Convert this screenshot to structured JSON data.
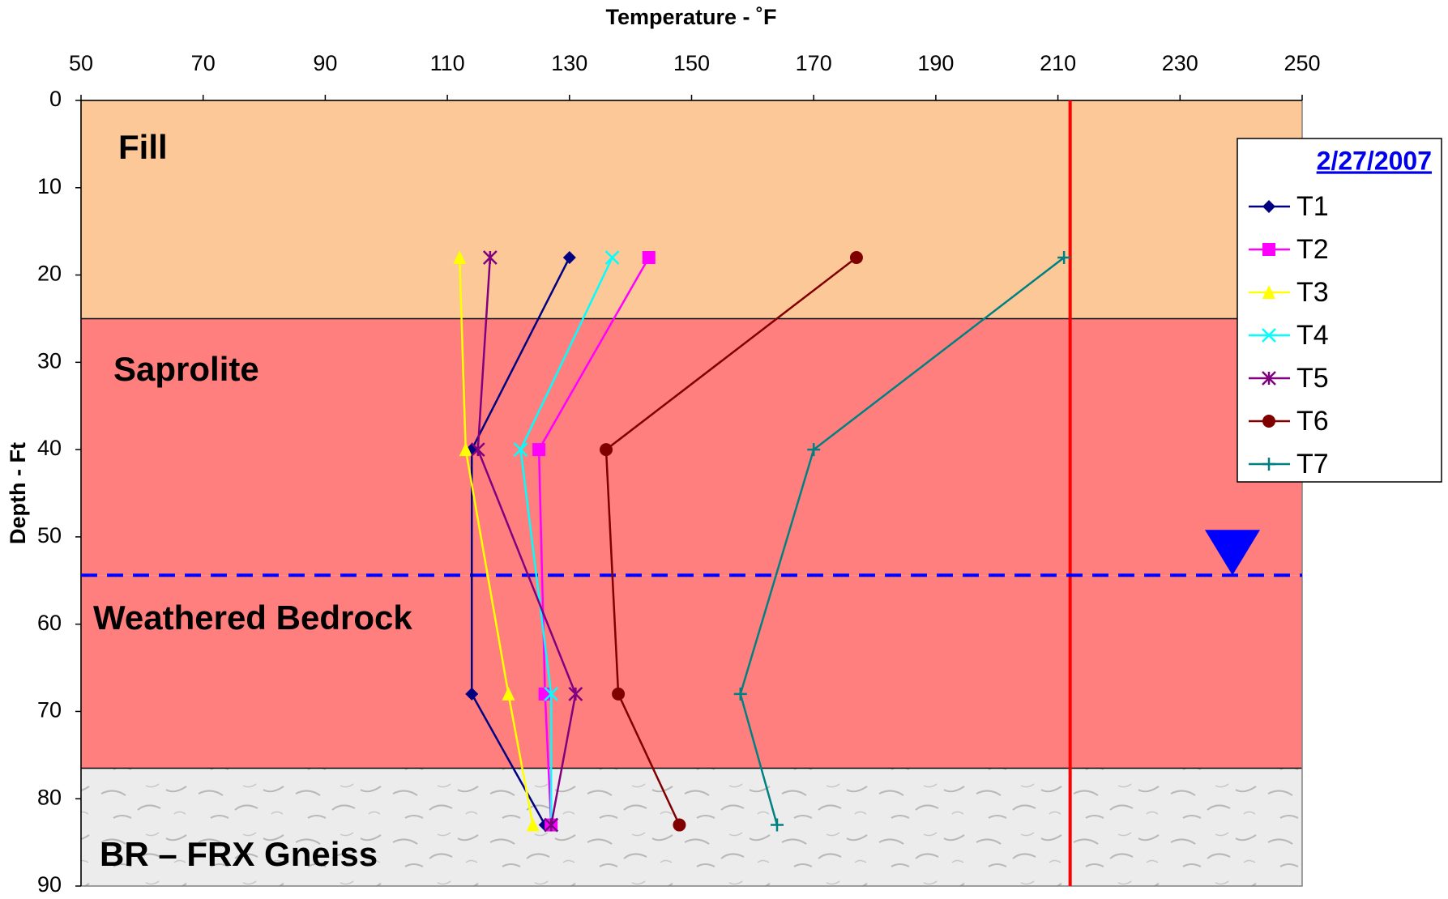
{
  "chart_data": {
    "type": "line",
    "x_label": "Temperature - ˚F",
    "y_label": "Depth - Ft",
    "xlim": [
      50,
      250
    ],
    "xticks": [
      50,
      70,
      90,
      110,
      130,
      150,
      170,
      190,
      210,
      230,
      250
    ],
    "ylim": [
      0,
      90
    ],
    "yticks": [
      0,
      10,
      20,
      30,
      40,
      50,
      60,
      70,
      80,
      90
    ],
    "y_inverted": true,
    "x_axis_position": "top",
    "legend_title": "2/27/2007",
    "legend_position": "right",
    "depths": [
      18,
      40,
      68,
      83
    ],
    "series": [
      {
        "name": "T1",
        "color": "#000080",
        "marker": "diamond",
        "values": [
          130,
          114,
          114,
          126
        ]
      },
      {
        "name": "T2",
        "color": "#ff00ff",
        "marker": "square",
        "values": [
          143,
          125,
          126,
          127
        ]
      },
      {
        "name": "T3",
        "color": "#ffff00",
        "marker": "triangle",
        "values": [
          112,
          113,
          120,
          124
        ]
      },
      {
        "name": "T4",
        "color": "#00ffff",
        "marker": "x",
        "values": [
          137,
          122,
          127,
          127
        ]
      },
      {
        "name": "T5",
        "color": "#800080",
        "marker": "star",
        "values": [
          117,
          115,
          131,
          127
        ]
      },
      {
        "name": "T6",
        "color": "#800000",
        "marker": "circle",
        "values": [
          177,
          136,
          138,
          148
        ]
      },
      {
        "name": "T7",
        "color": "#008080",
        "marker": "plus",
        "values": [
          211,
          170,
          158,
          164
        ]
      }
    ],
    "layers": [
      {
        "label": "Fill",
        "top": 0,
        "bottom": 25,
        "color": "#fcc897"
      },
      {
        "label": "Saprolite",
        "top": 25,
        "bottom": 54.4,
        "color": "#ff7f7f"
      },
      {
        "label": "Weathered Bedrock",
        "top": 54.4,
        "bottom": 76.5,
        "color": "#ff7f7f"
      },
      {
        "label": "BR – FRX Gneiss",
        "top": 76.5,
        "bottom": 90,
        "color": "#e6e6e6"
      }
    ],
    "reference_line": {
      "value": 212,
      "color": "#ff0000"
    },
    "water_table": {
      "depth": 54.4,
      "color": "#0000ff"
    }
  }
}
